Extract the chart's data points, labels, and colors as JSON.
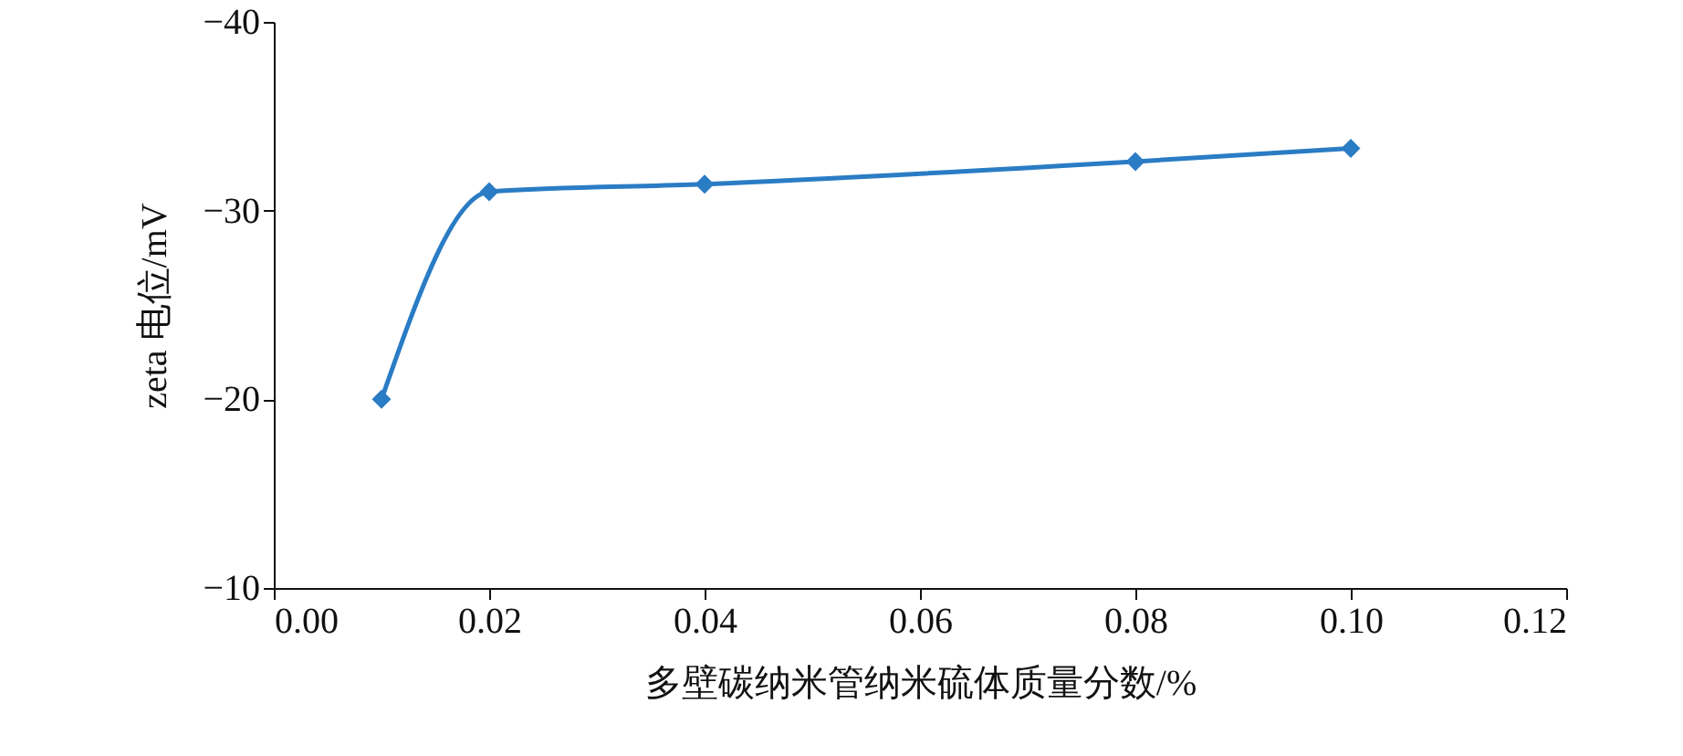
{
  "chart_data": {
    "type": "line",
    "xlabel": "多壁碳纳米管纳米硫体质量分数/%",
    "ylabel": "zeta 电位/mV",
    "x": [
      0.01,
      0.02,
      0.04,
      0.08,
      0.1
    ],
    "series": [
      {
        "color": "#2a7cc4",
        "values": [
          -20,
          -31,
          -31.4,
          -32.6,
          -33.3
        ]
      }
    ],
    "xlim": [
      0,
      0.12
    ],
    "xticks": [
      {
        "value": 0,
        "label": "0.00"
      },
      {
        "value": 0.02,
        "label": "0.02"
      },
      {
        "value": 0.04,
        "label": "0.04"
      },
      {
        "value": 0.06,
        "label": "0.06"
      },
      {
        "value": 0.08,
        "label": "0.08"
      },
      {
        "value": 0.1,
        "label": "0.10"
      },
      {
        "value": 0.12,
        "label": "0.12"
      }
    ],
    "ylim": [
      -10,
      -40
    ],
    "yticks": [
      {
        "value": -40,
        "label": "−40"
      },
      {
        "value": -30,
        "label": "−30"
      },
      {
        "value": -20,
        "label": "−20"
      },
      {
        "value": -10,
        "label": "−10"
      }
    ],
    "marker": "diamond"
  }
}
